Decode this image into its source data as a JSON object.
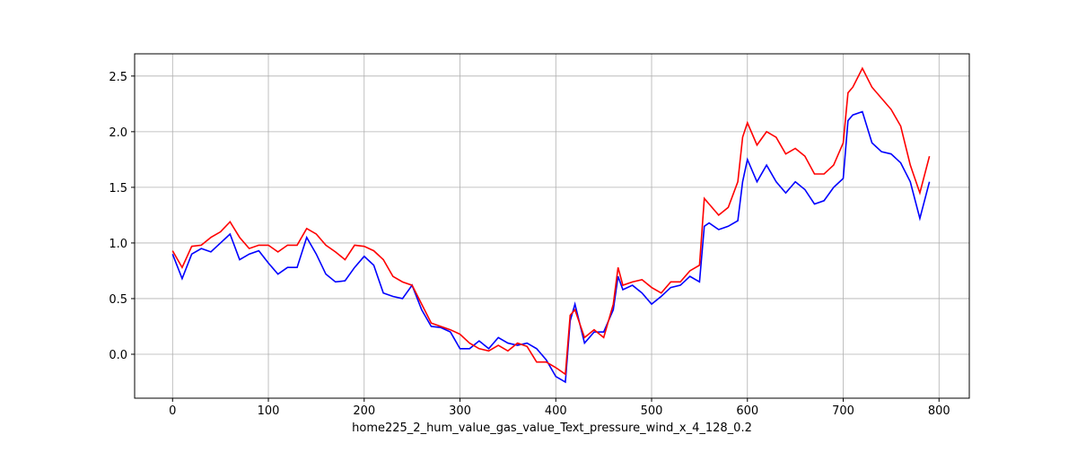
{
  "chart_data": {
    "type": "line",
    "xlabel": "home225_2_hum_value_gas_value_Text_pressure_wind_x_4_128_0.2",
    "x": [
      0,
      10,
      20,
      30,
      40,
      50,
      60,
      70,
      80,
      90,
      100,
      110,
      120,
      130,
      140,
      150,
      160,
      170,
      180,
      190,
      200,
      210,
      220,
      230,
      240,
      250,
      260,
      270,
      280,
      290,
      300,
      310,
      320,
      330,
      340,
      350,
      360,
      370,
      380,
      390,
      400,
      410,
      415,
      420,
      430,
      440,
      450,
      460,
      465,
      470,
      480,
      490,
      500,
      510,
      520,
      530,
      540,
      550,
      555,
      560,
      570,
      580,
      590,
      595,
      600,
      610,
      620,
      630,
      640,
      650,
      660,
      670,
      680,
      690,
      700,
      705,
      710,
      720,
      730,
      740,
      750,
      760,
      770,
      780,
      790
    ],
    "series": [
      {
        "color": "#0000ff",
        "values": [
          0.9,
          0.68,
          0.9,
          0.95,
          0.92,
          1.0,
          1.08,
          0.85,
          0.9,
          0.93,
          0.82,
          0.72,
          0.78,
          0.78,
          1.05,
          0.9,
          0.72,
          0.65,
          0.66,
          0.78,
          0.88,
          0.8,
          0.55,
          0.52,
          0.5,
          0.62,
          0.4,
          0.25,
          0.24,
          0.2,
          0.05,
          0.05,
          0.12,
          0.05,
          0.15,
          0.1,
          0.08,
          0.1,
          0.05,
          -0.05,
          -0.2,
          -0.25,
          0.3,
          0.45,
          0.1,
          0.2,
          0.2,
          0.4,
          0.7,
          0.58,
          0.62,
          0.55,
          0.45,
          0.52,
          0.6,
          0.62,
          0.7,
          0.65,
          1.15,
          1.18,
          1.12,
          1.15,
          1.2,
          1.55,
          1.75,
          1.55,
          1.7,
          1.55,
          1.45,
          1.55,
          1.48,
          1.35,
          1.38,
          1.5,
          1.58,
          2.1,
          2.15,
          2.18,
          1.9,
          1.82,
          1.8,
          1.72,
          1.55,
          1.22,
          1.55
        ]
      },
      {
        "color": "#ff0000",
        "values": [
          0.93,
          0.78,
          0.97,
          0.98,
          1.05,
          1.1,
          1.19,
          1.05,
          0.95,
          0.98,
          0.98,
          0.92,
          0.98,
          0.98,
          1.13,
          1.08,
          0.98,
          0.92,
          0.85,
          0.98,
          0.97,
          0.93,
          0.85,
          0.7,
          0.65,
          0.62,
          0.45,
          0.28,
          0.25,
          0.22,
          0.18,
          0.1,
          0.05,
          0.03,
          0.08,
          0.03,
          0.1,
          0.07,
          -0.07,
          -0.07,
          -0.12,
          -0.18,
          0.35,
          0.4,
          0.15,
          0.22,
          0.15,
          0.45,
          0.78,
          0.62,
          0.65,
          0.67,
          0.6,
          0.55,
          0.65,
          0.65,
          0.75,
          0.8,
          1.4,
          1.35,
          1.25,
          1.32,
          1.55,
          1.95,
          2.08,
          1.88,
          2.0,
          1.95,
          1.8,
          1.85,
          1.78,
          1.62,
          1.62,
          1.7,
          1.9,
          2.35,
          2.4,
          2.57,
          2.4,
          2.3,
          2.2,
          2.05,
          1.7,
          1.45,
          1.78
        ]
      }
    ],
    "xlim": [
      -39.6,
      831.6
    ],
    "ylim": [
      -0.395,
      2.7
    ],
    "xticks": [
      0,
      100,
      200,
      300,
      400,
      500,
      600,
      700,
      800
    ],
    "yticks": [
      {
        "value": 0,
        "label": "0.0"
      },
      0.5,
      {
        "value": 1,
        "label": "1.0"
      },
      1.5,
      {
        "value": 2,
        "label": "2.0"
      },
      2.5
    ],
    "grid": true
  }
}
